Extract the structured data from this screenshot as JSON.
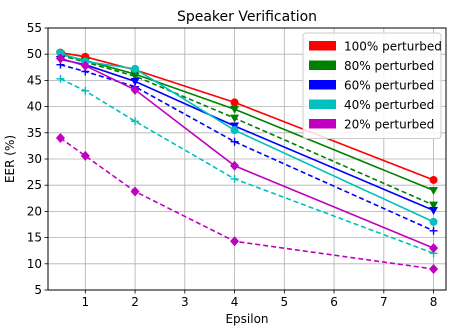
{
  "chart_data": {
    "type": "line",
    "title": "Speaker Verification",
    "xlabel": "Epsilon",
    "ylabel": "EER (%)",
    "xlim": [
      0.25,
      8.25
    ],
    "ylim": [
      5,
      55
    ],
    "xticks": [
      1,
      2,
      3,
      4,
      5,
      6,
      7,
      8
    ],
    "yticks": [
      5,
      10,
      15,
      20,
      25,
      30,
      35,
      40,
      45,
      50,
      55
    ],
    "grid": true,
    "legend_position": "top-right",
    "x": [
      0.5,
      1,
      2,
      4,
      8
    ],
    "series": [
      {
        "name": "100% perturbed",
        "color": "#ff0000",
        "style": "solid",
        "marker": "circle",
        "values": [
          50.3,
          49.5,
          47.0,
          40.8,
          26.0
        ]
      },
      {
        "name": "80% perturbed",
        "color": "#008000",
        "style": "solid",
        "marker": "triangle-down",
        "values": [
          50.0,
          48.8,
          46.2,
          39.5,
          24.0
        ]
      },
      {
        "name": "",
        "color": "#008000",
        "style": "dashed",
        "marker": "triangle-down",
        "values": [
          49.8,
          48.5,
          45.8,
          37.8,
          21.2
        ]
      },
      {
        "name": "60% perturbed",
        "color": "#0000ff",
        "style": "solid",
        "marker": "triangle-down",
        "values": [
          49.0,
          48.0,
          44.8,
          36.3,
          20.2
        ]
      },
      {
        "name": "",
        "color": "#0000ff",
        "style": "dashed",
        "marker": "plus",
        "values": [
          48.0,
          46.7,
          43.8,
          33.3,
          16.3
        ]
      },
      {
        "name": "40% perturbed",
        "color": "#00c0c0",
        "style": "solid",
        "marker": "circle",
        "values": [
          50.2,
          48.6,
          47.2,
          35.5,
          18.0
        ]
      },
      {
        "name": "",
        "color": "#00c0c0",
        "style": "dashed",
        "marker": "plus",
        "values": [
          45.3,
          43.0,
          37.2,
          26.2,
          12.0
        ]
      },
      {
        "name": "20% perturbed",
        "color": "#c000c0",
        "style": "solid",
        "marker": "diamond",
        "values": [
          49.2,
          47.8,
          43.2,
          28.7,
          13.0
        ]
      },
      {
        "name": "",
        "color": "#c000c0",
        "style": "dashed",
        "marker": "diamond",
        "values": [
          34.0,
          30.6,
          23.8,
          14.3,
          9.0
        ]
      }
    ]
  }
}
